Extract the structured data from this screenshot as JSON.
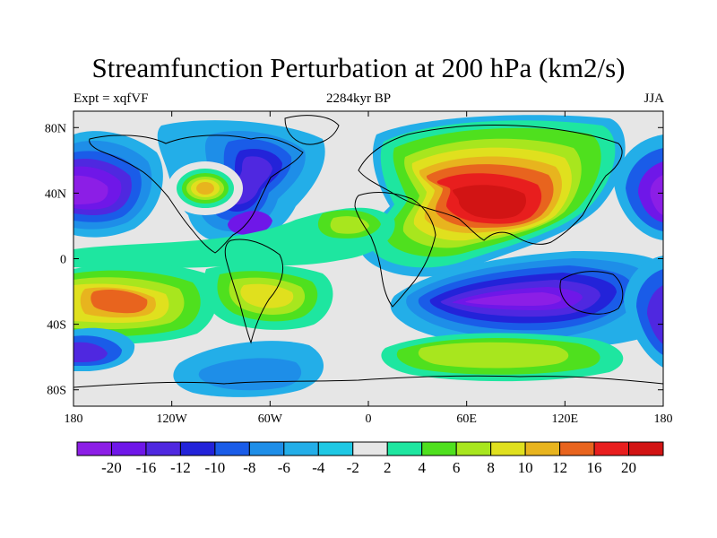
{
  "figure": {
    "title": "Streamfunction Perturbation at 200 hPa (km2/s)",
    "left_label": "Expt = xqfVF",
    "center_label": "2284kyr BP",
    "right_label": "JJA"
  },
  "chart_data": {
    "type": "heatmap",
    "projection": "cylindrical-equidistant",
    "lon_range": [
      -180,
      180
    ],
    "lat_range": [
      -90,
      90
    ],
    "x_ticks": [
      {
        "value": -180,
        "label": "180"
      },
      {
        "value": -120,
        "label": "120W"
      },
      {
        "value": -60,
        "label": "60W"
      },
      {
        "value": 0,
        "label": "0"
      },
      {
        "value": 60,
        "label": "60E"
      },
      {
        "value": 120,
        "label": "120E"
      },
      {
        "value": 180,
        "label": "180"
      }
    ],
    "y_ticks": [
      {
        "value": 80,
        "label": "80N"
      },
      {
        "value": 40,
        "label": "40N"
      },
      {
        "value": 0,
        "label": "0"
      },
      {
        "value": -40,
        "label": "40S"
      },
      {
        "value": -80,
        "label": "80S"
      }
    ],
    "colorbar": {
      "labels": [
        "-20",
        "-16",
        "-12",
        "-10",
        "-8",
        "-6",
        "-4",
        "-2",
        "2",
        "4",
        "6",
        "8",
        "10",
        "12",
        "16",
        "20"
      ],
      "levels": [
        -20,
        -16,
        -12,
        -10,
        -8,
        -6,
        -4,
        -2,
        2,
        4,
        6,
        8,
        10,
        12,
        16,
        20
      ],
      "colors": [
        "#8c1ee6",
        "#6f17e8",
        "#4f28e0",
        "#2323d9",
        "#1a5ce8",
        "#1e8ee8",
        "#23aee8",
        "#1ec8e4",
        "#e6e6e6",
        "#1ee6a0",
        "#4fe01e",
        "#a8e61e",
        "#e0e01e",
        "#e8b41e",
        "#e8641e",
        "#e81e1e",
        "#d21414"
      ]
    },
    "fields": [
      {
        "region": "Asia / Tibetan high",
        "lon": 75,
        "lat": 30,
        "value": 21
      },
      {
        "region": "North Pacific low",
        "lon": -165,
        "lat": 35,
        "value": -20
      },
      {
        "region": "Canada low",
        "lon": -75,
        "lat": 55,
        "value": -14
      },
      {
        "region": "Southeast US low",
        "lon": -85,
        "lat": 22,
        "value": -12
      },
      {
        "region": "Great Plains high",
        "lon": -104,
        "lat": 42,
        "value": 9
      },
      {
        "region": "South Pacific high",
        "lon": -135,
        "lat": -22,
        "value": 16
      },
      {
        "region": "South America high",
        "lon": -60,
        "lat": -25,
        "value": 8
      },
      {
        "region": "South Indian Ocean low",
        "lon": 90,
        "lat": -30,
        "value": -20
      },
      {
        "region": "Subpolar South Pacific low",
        "lon": -175,
        "lat": -55,
        "value": -12
      },
      {
        "region": "Southern Ocean high",
        "lon": 70,
        "lat": -58,
        "value": 8
      },
      {
        "region": "Antarctic low",
        "lon": -40,
        "lat": -75,
        "value": -5
      },
      {
        "region": "Tropical Atlantic high",
        "lon": -5,
        "lat": 20,
        "value": 6
      }
    ]
  }
}
